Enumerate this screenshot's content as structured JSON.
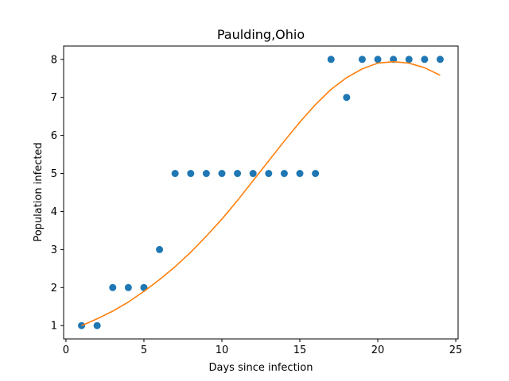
{
  "chart_data": {
    "type": "scatter",
    "title": "Paulding,Ohio",
    "xlabel": "Days since infection",
    "ylabel": "Population infected",
    "xlim": [
      -0.15,
      25.15
    ],
    "ylim": [
      0.65,
      8.35
    ],
    "xticks": [
      "0",
      "5",
      "10",
      "15",
      "20",
      "25"
    ],
    "yticks": [
      "1",
      "2",
      "3",
      "4",
      "5",
      "6",
      "7",
      "8"
    ],
    "grid": false,
    "series": [
      {
        "type": "scatter",
        "color": "#1f77b4",
        "x": [
          1,
          2,
          3,
          4,
          5,
          6,
          7,
          8,
          9,
          10,
          11,
          12,
          13,
          14,
          15,
          16,
          17,
          18,
          19,
          20,
          21,
          22,
          23,
          24
        ],
        "y": [
          1,
          1,
          2,
          2,
          2,
          3,
          5,
          5,
          5,
          5,
          5,
          5,
          5,
          5,
          5,
          5,
          8,
          7,
          8,
          8,
          8,
          8,
          8,
          8
        ]
      },
      {
        "type": "line",
        "color": "#ff7f0e",
        "x": [
          1,
          2,
          3,
          4,
          5,
          6,
          7,
          8,
          9,
          10,
          11,
          12,
          13,
          14,
          15,
          16,
          17,
          18,
          19,
          20,
          21,
          22,
          23,
          24
        ],
        "y": [
          1.0,
          1.18,
          1.38,
          1.62,
          1.9,
          2.21,
          2.55,
          2.93,
          3.35,
          3.8,
          4.29,
          4.81,
          5.33,
          5.85,
          6.35,
          6.81,
          7.21,
          7.52,
          7.75,
          7.9,
          7.94,
          7.9,
          7.78,
          7.58
        ]
      }
    ]
  }
}
